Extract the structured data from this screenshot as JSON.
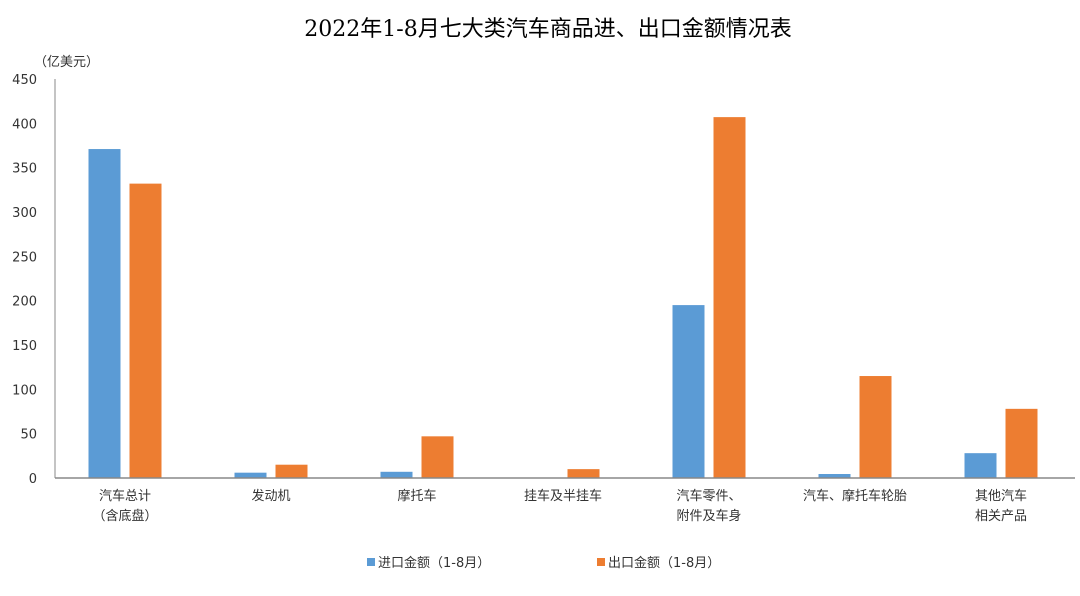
{
  "chart_data": {
    "type": "bar",
    "title": "2022年1-8月七大类汽车商品进、出口金额情况表",
    "ylabel": "（亿美元）",
    "ylim": [
      0,
      450
    ],
    "yticks": [
      0,
      50,
      100,
      150,
      200,
      250,
      300,
      350,
      400,
      450
    ],
    "grid": false,
    "legend_position": "bottom",
    "categories": [
      [
        "汽车总计",
        "（含底盘）"
      ],
      [
        "发动机"
      ],
      [
        "摩托车"
      ],
      [
        "挂车及半挂车"
      ],
      [
        "汽车零件、",
        "附件及车身"
      ],
      [
        "汽车、摩托车轮胎"
      ],
      [
        "其他汽车",
        "相关产品"
      ]
    ],
    "series": [
      {
        "name": "进口金额（1-8月）",
        "color": "#5B9BD5",
        "values": [
          371,
          6,
          7,
          0,
          195,
          4.5,
          28
        ]
      },
      {
        "name": "出口金额（1-8月）",
        "color": "#ED7D31",
        "values": [
          332,
          15,
          47,
          10,
          407,
          115,
          78
        ]
      }
    ]
  }
}
